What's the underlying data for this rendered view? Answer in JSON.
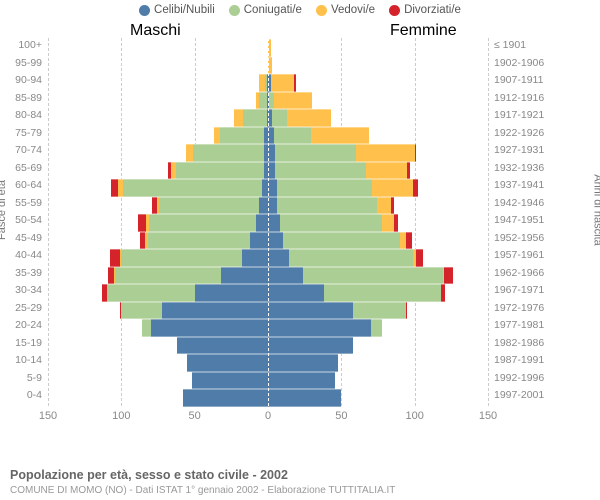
{
  "legend": [
    {
      "label": "Celibi/Nubili",
      "color": "#4f7ca8"
    },
    {
      "label": "Coniugati/e",
      "color": "#abce94"
    },
    {
      "label": "Vedovi/e",
      "color": "#ffc04c"
    },
    {
      "label": "Divorziati/e",
      "color": "#d4232b"
    }
  ],
  "header_male": "Maschi",
  "header_female": "Femmine",
  "axis_left": "Fasce di età",
  "axis_right": "Anni di nascita",
  "x_ticks": [
    -150,
    -100,
    -50,
    0,
    50,
    100,
    150
  ],
  "x_tick_labels": [
    "150",
    "100",
    "50",
    "0",
    "50",
    "100",
    "150"
  ],
  "colors": {
    "single": "#4f7ca8",
    "married": "#abce94",
    "widowed": "#ffc04c",
    "divorced": "#d4232b",
    "grid": "#cccccc",
    "bg": "#ffffff"
  },
  "scale_max": 150,
  "rows": [
    {
      "age": "100+",
      "year": "≤ 1901",
      "m": [
        0,
        0,
        0,
        0
      ],
      "f": [
        0,
        0,
        2,
        0
      ]
    },
    {
      "age": "95-99",
      "year": "1902-1906",
      "m": [
        0,
        0,
        0,
        0
      ],
      "f": [
        0,
        0,
        3,
        0
      ]
    },
    {
      "age": "90-94",
      "year": "1907-1911",
      "m": [
        1,
        1,
        4,
        0
      ],
      "f": [
        2,
        0,
        16,
        1
      ]
    },
    {
      "age": "85-89",
      "year": "1912-1916",
      "m": [
        1,
        5,
        2,
        0
      ],
      "f": [
        1,
        3,
        26,
        0
      ]
    },
    {
      "age": "80-84",
      "year": "1917-1921",
      "m": [
        1,
        16,
        6,
        0
      ],
      "f": [
        3,
        10,
        30,
        0
      ]
    },
    {
      "age": "75-79",
      "year": "1922-1926",
      "m": [
        3,
        30,
        4,
        0
      ],
      "f": [
        4,
        25,
        40,
        0
      ]
    },
    {
      "age": "70-74",
      "year": "1927-1931",
      "m": [
        3,
        48,
        5,
        0
      ],
      "f": [
        5,
        55,
        40,
        1
      ]
    },
    {
      "age": "65-69",
      "year": "1932-1936",
      "m": [
        3,
        60,
        3,
        2
      ],
      "f": [
        5,
        62,
        28,
        2
      ]
    },
    {
      "age": "60-64",
      "year": "1937-1941",
      "m": [
        4,
        95,
        3,
        5
      ],
      "f": [
        6,
        65,
        28,
        3
      ]
    },
    {
      "age": "55-59",
      "year": "1942-1946",
      "m": [
        6,
        68,
        2,
        3
      ],
      "f": [
        6,
        68,
        10,
        2
      ]
    },
    {
      "age": "50-54",
      "year": "1947-1951",
      "m": [
        8,
        73,
        2,
        6
      ],
      "f": [
        8,
        70,
        8,
        3
      ]
    },
    {
      "age": "45-49",
      "year": "1952-1956",
      "m": [
        12,
        70,
        2,
        3
      ],
      "f": [
        10,
        80,
        4,
        4
      ]
    },
    {
      "age": "40-44",
      "year": "1957-1961",
      "m": [
        18,
        82,
        1,
        7
      ],
      "f": [
        14,
        85,
        2,
        5
      ]
    },
    {
      "age": "35-39",
      "year": "1962-1966",
      "m": [
        32,
        72,
        1,
        4
      ],
      "f": [
        24,
        95,
        1,
        6
      ]
    },
    {
      "age": "30-34",
      "year": "1967-1971",
      "m": [
        50,
        60,
        0,
        3
      ],
      "f": [
        38,
        80,
        0,
        3
      ]
    },
    {
      "age": "25-29",
      "year": "1972-1976",
      "m": [
        72,
        28,
        0,
        1
      ],
      "f": [
        58,
        36,
        0,
        1
      ]
    },
    {
      "age": "20-24",
      "year": "1977-1981",
      "m": [
        80,
        6,
        0,
        0
      ],
      "f": [
        70,
        8,
        0,
        0
      ]
    },
    {
      "age": "15-19",
      "year": "1982-1986",
      "m": [
        62,
        0,
        0,
        0
      ],
      "f": [
        58,
        0,
        0,
        0
      ]
    },
    {
      "age": "10-14",
      "year": "1987-1991",
      "m": [
        55,
        0,
        0,
        0
      ],
      "f": [
        48,
        0,
        0,
        0
      ]
    },
    {
      "age": "5-9",
      "year": "1992-1996",
      "m": [
        52,
        0,
        0,
        0
      ],
      "f": [
        46,
        0,
        0,
        0
      ]
    },
    {
      "age": "0-4",
      "year": "1997-2001",
      "m": [
        58,
        0,
        0,
        0
      ],
      "f": [
        50,
        0,
        0,
        0
      ]
    }
  ],
  "footer_title": "Popolazione per età, sesso e stato civile - 2002",
  "footer_sub": "COMUNE DI MOMO (NO) - Dati ISTAT 1° gennaio 2002 - Elaborazione TUTTITALIA.IT"
}
